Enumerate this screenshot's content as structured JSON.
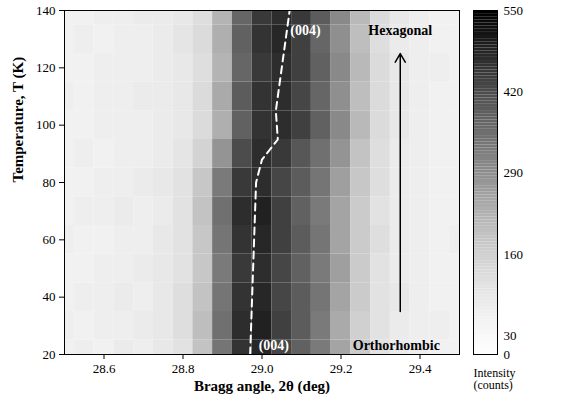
{
  "chart_data": {
    "type": "heatmap",
    "xlabel": "Bragg angle, 2θ (deg)",
    "ylabel": "Temperature, T (K)",
    "xlim": [
      28.5,
      29.5
    ],
    "xticks": [
      28.6,
      28.8,
      29.0,
      29.2,
      29.4
    ],
    "ylim": [
      20,
      140
    ],
    "yticks": [
      20,
      40,
      60,
      80,
      100,
      120,
      140
    ],
    "x": [
      28.5,
      28.55,
      28.6,
      28.65,
      28.7,
      28.75,
      28.8,
      28.85,
      28.9,
      28.95,
      29.0,
      29.05,
      29.1,
      29.15,
      29.2,
      29.25,
      29.3,
      29.35,
      29.4,
      29.45,
      29.5
    ],
    "y": [
      20,
      30,
      40,
      50,
      60,
      70,
      80,
      90,
      100,
      110,
      120,
      130,
      140
    ],
    "values": [
      [
        60,
        70,
        60,
        80,
        70,
        90,
        110,
        190,
        340,
        460,
        480,
        430,
        380,
        330,
        250,
        170,
        110,
        80,
        70,
        60,
        60
      ],
      [
        70,
        60,
        70,
        70,
        80,
        90,
        120,
        200,
        350,
        470,
        490,
        440,
        390,
        330,
        240,
        160,
        110,
        80,
        70,
        70,
        60
      ],
      [
        60,
        70,
        70,
        80,
        70,
        90,
        120,
        190,
        340,
        460,
        480,
        430,
        390,
        340,
        250,
        170,
        110,
        90,
        70,
        60,
        60
      ],
      [
        60,
        60,
        70,
        70,
        80,
        90,
        110,
        180,
        330,
        450,
        470,
        430,
        380,
        330,
        260,
        170,
        110,
        80,
        70,
        60,
        60
      ],
      [
        70,
        60,
        60,
        70,
        70,
        90,
        110,
        180,
        340,
        460,
        480,
        440,
        390,
        340,
        250,
        170,
        120,
        80,
        70,
        60,
        70
      ],
      [
        60,
        70,
        70,
        80,
        70,
        80,
        110,
        190,
        350,
        470,
        490,
        440,
        380,
        330,
        250,
        170,
        110,
        80,
        70,
        60,
        60
      ],
      [
        60,
        60,
        70,
        70,
        80,
        90,
        110,
        180,
        330,
        450,
        470,
        430,
        390,
        340,
        260,
        180,
        120,
        80,
        70,
        60,
        60
      ],
      [
        60,
        70,
        60,
        70,
        70,
        80,
        100,
        150,
        280,
        420,
        470,
        450,
        400,
        350,
        280,
        190,
        120,
        80,
        70,
        60,
        60
      ],
      [
        60,
        60,
        70,
        70,
        70,
        80,
        90,
        130,
        230,
        380,
        460,
        470,
        440,
        380,
        300,
        210,
        130,
        90,
        70,
        60,
        60
      ],
      [
        70,
        60,
        70,
        70,
        80,
        80,
        90,
        130,
        240,
        390,
        460,
        470,
        430,
        370,
        290,
        200,
        130,
        90,
        70,
        60,
        60
      ],
      [
        60,
        60,
        70,
        70,
        70,
        80,
        90,
        120,
        220,
        370,
        450,
        470,
        440,
        380,
        300,
        210,
        130,
        90,
        70,
        70,
        60
      ],
      [
        60,
        70,
        60,
        70,
        70,
        80,
        100,
        130,
        230,
        380,
        460,
        480,
        440,
        370,
        290,
        200,
        120,
        80,
        70,
        60,
        60
      ],
      [
        60,
        60,
        70,
        70,
        80,
        80,
        90,
        120,
        220,
        370,
        450,
        470,
        450,
        390,
        300,
        210,
        130,
        90,
        70,
        60,
        60
      ]
    ],
    "clim": [
      0,
      550
    ],
    "cticks": [
      0,
      30,
      160,
      290,
      420,
      550
    ],
    "colorbar_label": "Intensity (counts)",
    "peak_line": {
      "x": [
        28.97,
        28.975,
        28.98,
        28.985,
        29.0,
        29.04,
        29.035,
        29.05,
        29.07
      ],
      "y": [
        20,
        40,
        60,
        80,
        88,
        95,
        105,
        120,
        140
      ],
      "color": "#ffffff",
      "line_style": "dashed"
    },
    "annotations": [
      {
        "text": "(004)",
        "x": 29.11,
        "y": 133,
        "color": "#ffffff"
      },
      {
        "text": "Hexagonal",
        "x": 29.35,
        "y": 133,
        "color": "#000000"
      },
      {
        "text": "(004)",
        "x": 29.03,
        "y": 23,
        "color": "#ffffff"
      },
      {
        "text": "Orthorhombic",
        "x": 29.34,
        "y": 23,
        "color": "#000000"
      }
    ]
  }
}
